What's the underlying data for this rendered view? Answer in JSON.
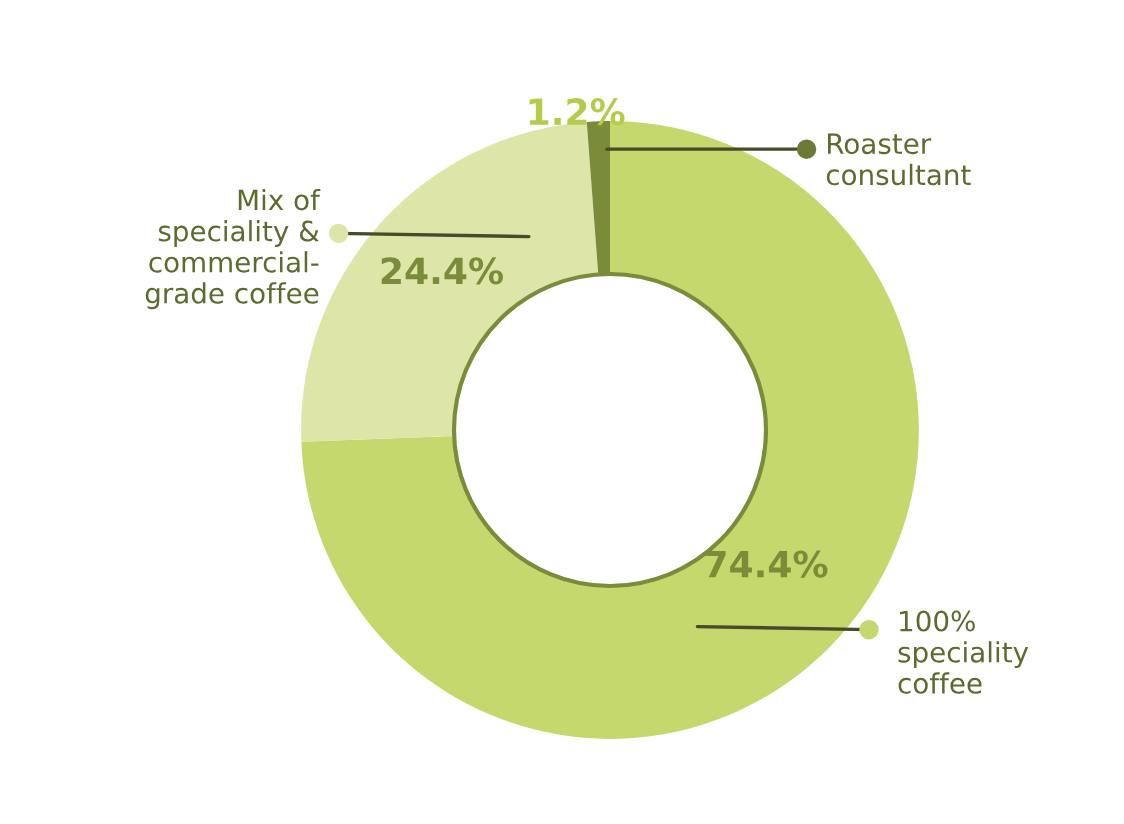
{
  "chart_data": {
    "type": "donut",
    "categories": [
      "100%\nspeciality\ncoffee",
      "Mix of\nspeciality &\ncommercial-\ngrade coffee",
      "Roaster\nconsultant"
    ],
    "values": [
      74.4,
      24.4,
      1.2
    ],
    "colors": [
      "#c5d86d",
      "#dde6a8",
      "#7a8c3a"
    ],
    "value_labels": [
      "74.4%",
      "24.4%",
      "1.2%"
    ]
  }
}
